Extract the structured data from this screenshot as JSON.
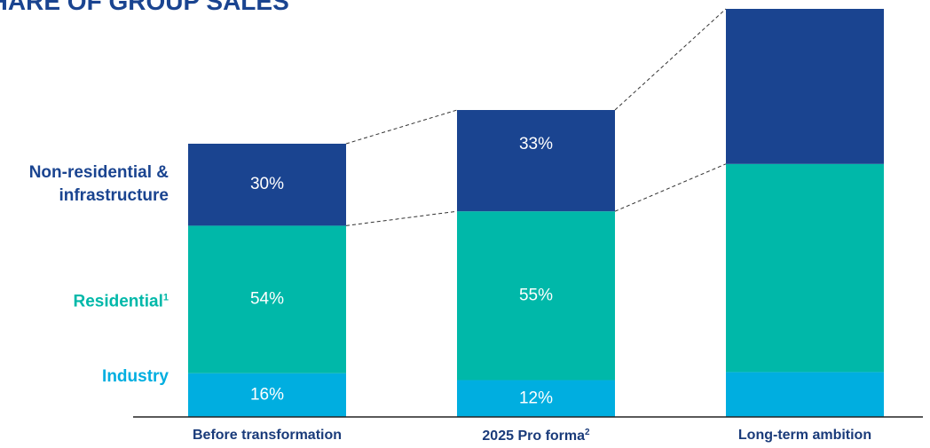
{
  "chart_data": {
    "type": "stacked_bar",
    "title": "SHARE OF GROUP SALES",
    "categories": [
      "Before transformation",
      "2025 Pro forma",
      "Long-term ambition"
    ],
    "category_footnotes": [
      null,
      "2",
      null
    ],
    "series": [
      {
        "name": "Industry",
        "color": "#00aee0",
        "values": [
          16,
          12,
          11
        ],
        "value_labels": [
          "16%",
          "12%",
          null
        ]
      },
      {
        "name": "Residential",
        "footnote": "1",
        "color": "#00b8a9",
        "values": [
          54,
          55,
          51
        ],
        "value_labels": [
          "54%",
          "55%",
          null
        ]
      },
      {
        "name": "Non-residential & infrastructure",
        "color": "#1a4490",
        "values": [
          30,
          33,
          38
        ],
        "value_labels": [
          "30%",
          "33%",
          null
        ]
      }
    ]
  }
}
